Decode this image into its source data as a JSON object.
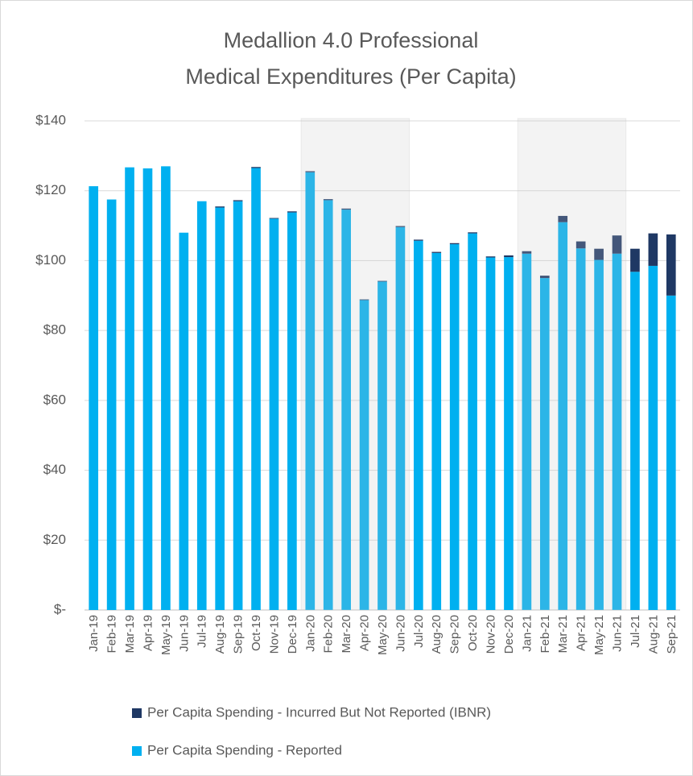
{
  "chart_data": {
    "type": "stacked_bar",
    "title": [
      "Medallion 4.0 Professional",
      "Medical Expenditures (Per Capita)"
    ],
    "categories": [
      "Jan-19",
      "Feb-19",
      "Mar-19",
      "Apr-19",
      "May-19",
      "Jun-19",
      "Jul-19",
      "Aug-19",
      "Sep-19",
      "Oct-19",
      "Nov-19",
      "Dec-19",
      "Jan-20",
      "Feb-20",
      "Mar-20",
      "Apr-20",
      "May-20",
      "Jun-20",
      "Jul-20",
      "Aug-20",
      "Sep-20",
      "Oct-20",
      "Nov-20",
      "Dec-20",
      "Jan-21",
      "Feb-21",
      "Mar-21",
      "Apr-21",
      "May-21",
      "Jun-21",
      "Jul-21",
      "Aug-21",
      "Sep-21"
    ],
    "series": [
      {
        "name": "Per Capita Spending - Reported",
        "color": "#00b0f0",
        "values": [
          121.3,
          117.5,
          126.7,
          126.4,
          127,
          108,
          117,
          115.2,
          117,
          126.5,
          112,
          113.8,
          125.3,
          117.3,
          114.6,
          88.7,
          94,
          109.6,
          105.7,
          102.2,
          104.7,
          107.8,
          100.9,
          101,
          102,
          95,
          111,
          103.5,
          100.2,
          102,
          96.8,
          98.5,
          90
        ]
      },
      {
        "name": "Per Capita Spending - Incurred But Not Reported (IBNR)",
        "color": "#1f3864",
        "values": [
          0,
          0,
          0,
          0,
          0,
          0,
          0,
          0.3,
          0.3,
          0.3,
          0.2,
          0.3,
          0.3,
          0.3,
          0.3,
          0.2,
          0.2,
          0.3,
          0.3,
          0.3,
          0.3,
          0.3,
          0.3,
          0.5,
          0.7,
          0.7,
          1.8,
          2,
          3.2,
          5.2,
          6.6,
          9.3,
          17.5
        ]
      }
    ],
    "ylim": [
      0,
      140
    ],
    "yticks": [
      {
        "value": 0,
        "label": "$-"
      },
      {
        "value": 20,
        "label": "$20"
      },
      {
        "value": 40,
        "label": "$40"
      },
      {
        "value": 60,
        "label": "$60"
      },
      {
        "value": 80,
        "label": "$80"
      },
      {
        "value": 100,
        "label": "$100"
      },
      {
        "value": 120,
        "label": "$120"
      },
      {
        "value": 140,
        "label": "$140"
      }
    ],
    "grid": true,
    "legend": "bottom",
    "highlight_ranges": [
      [
        "Jan-20",
        "Jun-20"
      ],
      [
        "Jan-21",
        "Jun-21"
      ]
    ]
  }
}
